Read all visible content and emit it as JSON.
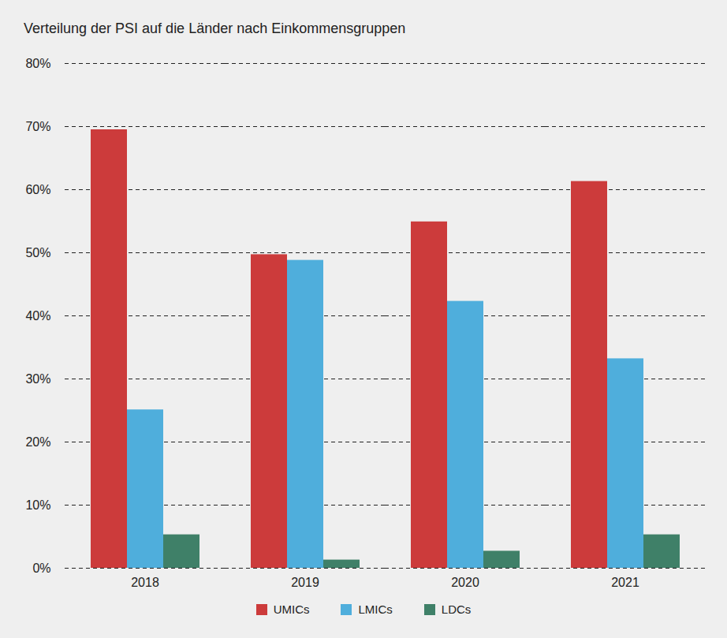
{
  "chart_data": {
    "type": "bar",
    "title": "Verteilung der PSI auf die Länder nach Einkommensgruppen",
    "categories": [
      "2018",
      "2019",
      "2020",
      "2021"
    ],
    "series": [
      {
        "name": "UMICs",
        "color": "#cc3b3b",
        "values": [
          69.5,
          49.7,
          54.9,
          61.3
        ]
      },
      {
        "name": "LMICs",
        "color": "#4faedc",
        "values": [
          25.1,
          48.8,
          42.3,
          33.2
        ]
      },
      {
        "name": "LDCs",
        "color": "#3f8068",
        "values": [
          5.3,
          1.3,
          2.7,
          5.3
        ]
      }
    ],
    "ylim": [
      0,
      80
    ],
    "yticks": [
      {
        "value": 0,
        "label": "0%"
      },
      {
        "value": 10,
        "label": "10%"
      },
      {
        "value": 20,
        "label": "20%"
      },
      {
        "value": 30,
        "label": "30%"
      },
      {
        "value": 40,
        "label": "40%"
      },
      {
        "value": 50,
        "label": "50%"
      },
      {
        "value": 60,
        "label": "60%"
      },
      {
        "value": 70,
        "label": "70%"
      },
      {
        "value": 80,
        "label": "80%"
      }
    ],
    "grid": true,
    "legend": "bottom"
  }
}
